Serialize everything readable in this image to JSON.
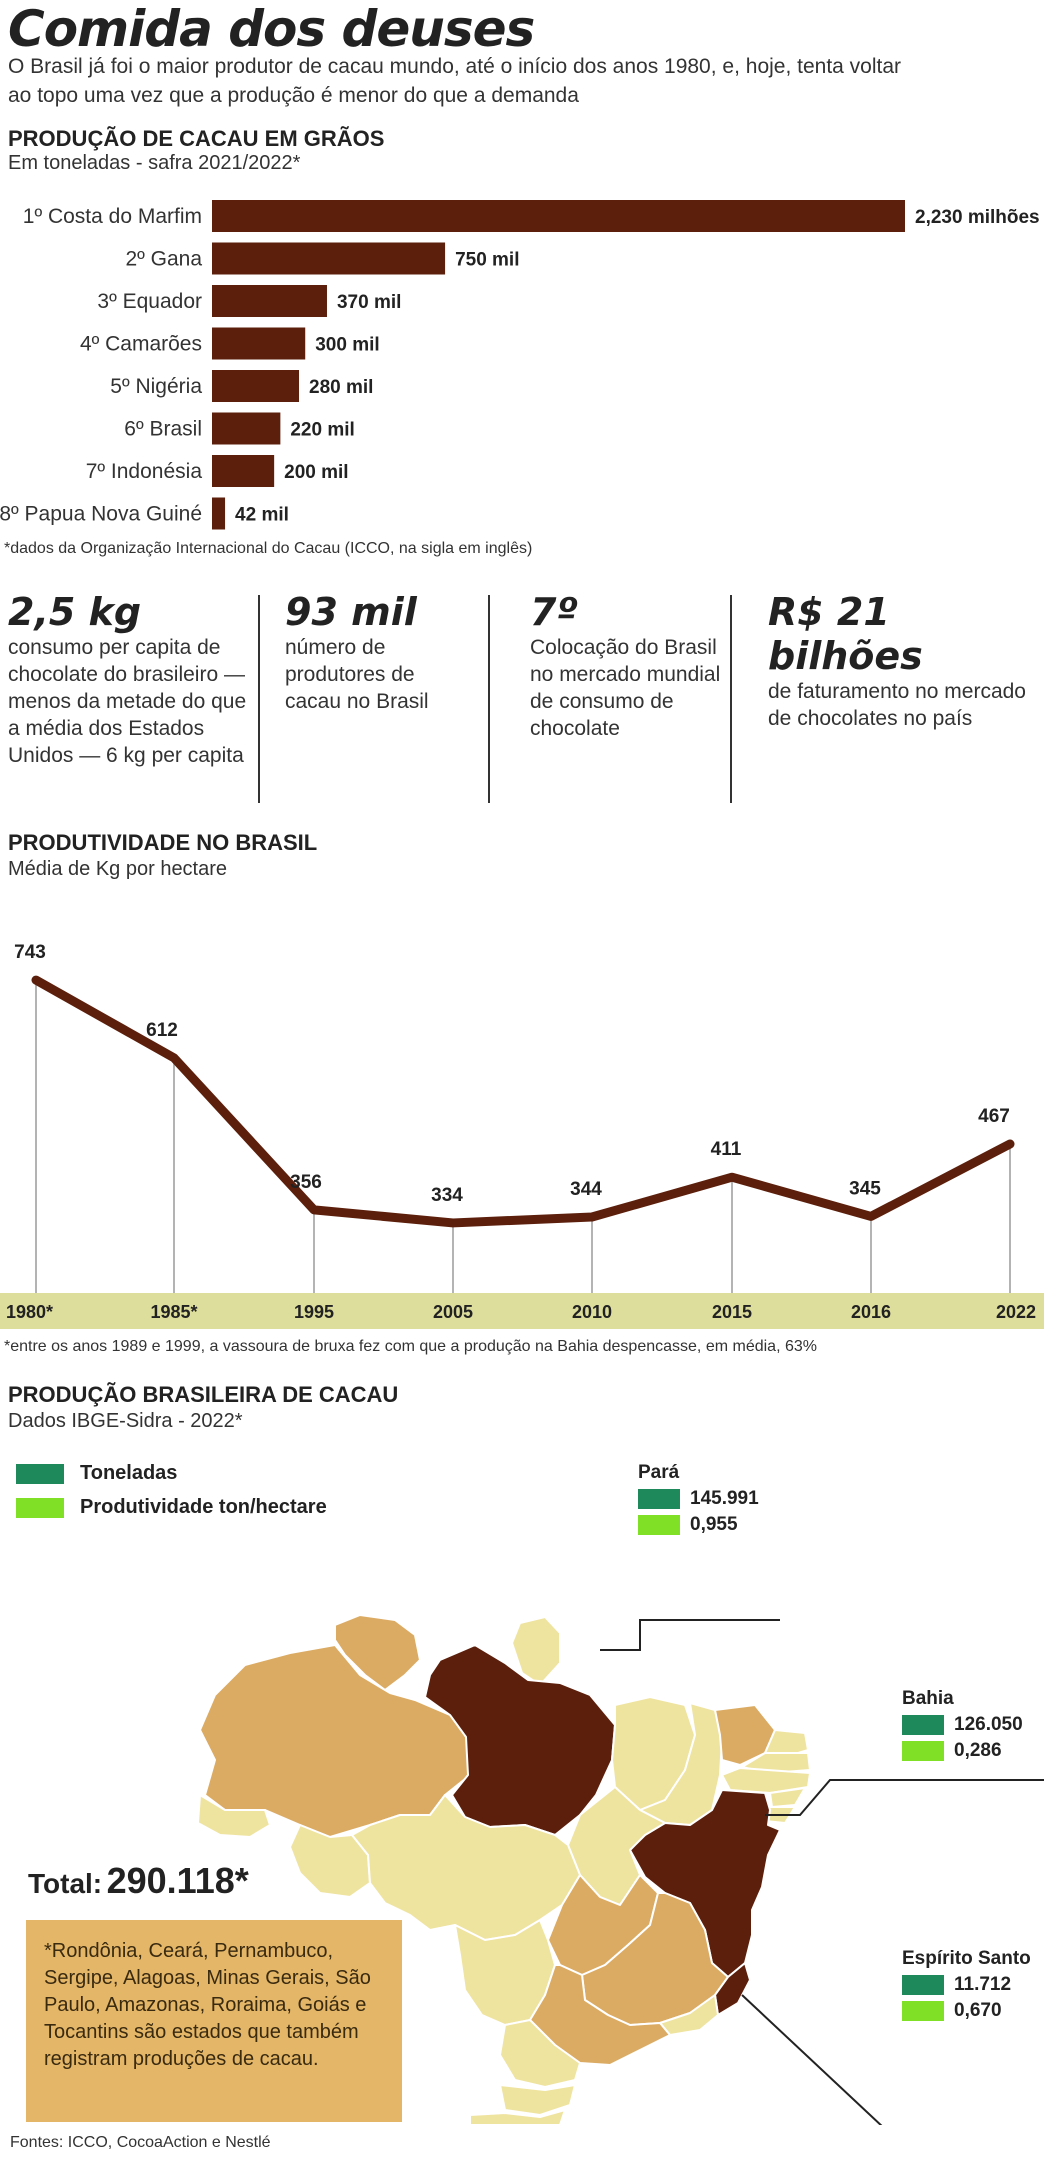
{
  "header": {
    "title": "Comida dos deuses",
    "intro": "O Brasil já foi o maior produtor de cacau mundo, até o início dos anos 1980, e, hoje, tenta voltar ao topo uma vez que a produção é menor do que a demanda"
  },
  "production": {
    "title": "PRODUÇÃO DE CACAU EM GRÃOS",
    "subtitle": "Em toneladas - safra 2021/2022*",
    "footnote": "*dados da Organização Internacional do Cacau (ICCO, na sigla em inglês)"
  },
  "stats": [
    {
      "big": "2,5 kg",
      "text": "consumo per capita de chocolate do brasileiro — menos da metade do que a média dos Estados Unidos — 6 kg per capita"
    },
    {
      "big": "93 mil",
      "text": "número de produtores de cacau no Brasil"
    },
    {
      "big": "7º",
      "text": "Colocação do Brasil no mercado mundial de consumo de chocolate"
    },
    {
      "big": "R$ 21 bilhões",
      "text": "de faturamento no mercado de chocolates no país"
    }
  ],
  "productivity": {
    "title": "PRODUTIVIDADE NO BRASIL",
    "subtitle": "Média de Kg por hectare",
    "footnote": "*entre os anos 1989 e 1999, a vassoura de bruxa fez com que a produção na Bahia despencasse, em média, 63%"
  },
  "brazil": {
    "title": "PRODUÇÃO BRASILEIRA DE CACAU",
    "subtitle": "Dados IBGE-Sidra - 2022*",
    "legend_tons": "Toneladas",
    "legend_prod": "Produtividade ton/hectare",
    "callouts": [
      {
        "name": "Pará",
        "tons": "145.991",
        "prod": "0,955"
      },
      {
        "name": "Bahia",
        "tons": "126.050",
        "prod": "0,286"
      },
      {
        "name": "Espírito Santo",
        "tons": "11.712",
        "prod": "0,670"
      }
    ],
    "total_label": "Total:",
    "total_value": "290.118*",
    "note": "*Rondônia, Ceará, Pernambuco, Sergipe, Alagoas, Minas Gerais, São Paulo, Amazonas, Roraima, Goiás e Tocantins são estados que também registram produções de cacau."
  },
  "sources": "Fontes: ICCO, CocoaAction e Nestlé",
  "colors": {
    "bar": "#5c1f0c",
    "axis_band": "#dede9c",
    "legend_tons": "#1e8a5c",
    "legend_prod": "#7fe026",
    "map_dark": "#5c1f0c",
    "map_mid": "#dbab63",
    "map_light": "#efe3a0"
  },
  "chart_data": [
    {
      "type": "bar",
      "title": "PRODUÇÃO DE CACAU EM GRÃOS",
      "subtitle": "Em toneladas - safra 2021/2022*",
      "orientation": "horizontal",
      "categories": [
        "1º Costa do Marfim",
        "2º Gana",
        "3º Equador",
        "4º Camarões",
        "5º Nigéria",
        "6º Brasil",
        "7º Indonésia",
        "8º Papua Nova Guiné"
      ],
      "values": [
        2230000,
        750000,
        370000,
        300000,
        280000,
        220000,
        200000,
        42000
      ],
      "labels": [
        "2,230 milhões",
        "750 mil",
        "370 mil",
        "300 mil",
        "280 mil",
        "220 mil",
        "200 mil",
        "42 mil"
      ]
    },
    {
      "type": "line",
      "title": "PRODUTIVIDADE NO BRASIL",
      "subtitle": "Média de Kg por hectare",
      "x": [
        "1980*",
        "1985*",
        "1995",
        "2005",
        "2010",
        "2015",
        "2016",
        "2022"
      ],
      "series": [
        {
          "values": [
            743,
            612,
            356,
            334,
            344,
            411,
            345,
            467
          ]
        }
      ],
      "ylim": [
        280,
        760
      ],
      "grid": false
    }
  ]
}
